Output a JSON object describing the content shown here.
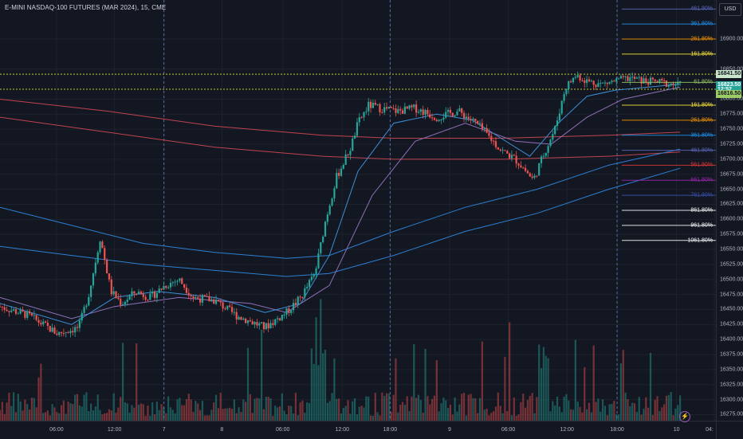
{
  "header": {
    "title": "E-MINI NASDAQ-100 FUTURES (MAR 2024), 15, CME"
  },
  "price_axis": {
    "currency": "USD",
    "ticks": [
      "16900.00",
      "16850.00",
      "16800.00",
      "16775.00",
      "16750.00",
      "16725.00",
      "16700.00",
      "16675.00",
      "16650.00",
      "16625.00",
      "16600.00",
      "16575.00",
      "16550.00",
      "16525.00",
      "16500.00",
      "16475.00",
      "16450.00",
      "16425.00",
      "16400.00",
      "16375.00",
      "16350.00",
      "16325.00",
      "16300.00",
      "16275.00"
    ],
    "tick_values": [
      16900,
      16850,
      16800,
      16775,
      16750,
      16725,
      16700,
      16675,
      16650,
      16625,
      16600,
      16575,
      16550,
      16525,
      16500,
      16475,
      16450,
      16425,
      16400,
      16375,
      16350,
      16325,
      16300,
      16275
    ],
    "tags": [
      {
        "text": "16841.50",
        "value": 16841.5,
        "color": "#ffeb3b",
        "fill": "#c8e6c9"
      },
      {
        "text": "16823.50",
        "value": 16823.5,
        "color": "#26a69a",
        "fill": "#26a69a"
      },
      {
        "text": "12:52",
        "value": 16815,
        "color": "#26a69a",
        "fill": "#26a69a"
      },
      {
        "text": "16816.50",
        "value": 16808.5,
        "color": "#9ccc65",
        "fill": "#9ccc65"
      }
    ]
  },
  "time_axis": {
    "labels": [
      "06:00",
      "12:00",
      "7",
      "8",
      "06:00",
      "12:00",
      "18:00",
      "9",
      "06:00",
      "12:00",
      "18:00",
      "10",
      "04:"
    ],
    "positions": [
      0.079,
      0.16,
      0.229,
      0.31,
      0.395,
      0.478,
      0.545,
      0.628,
      0.71,
      0.792,
      0.862,
      0.945,
      0.998
    ]
  },
  "fib_levels": [
    {
      "label": "461.80%",
      "value": 16950,
      "color": "#5c6bc0"
    },
    {
      "label": "361.80%",
      "value": 16925,
      "color": "#2196f3"
    },
    {
      "label": "261.80%",
      "value": 16900,
      "color": "#ff9800"
    },
    {
      "label": "161.80%",
      "value": 16875,
      "color": "#ffeb3b"
    },
    {
      "label": "61.80%",
      "value": 16828,
      "color": "#9ccc65"
    },
    {
      "label": "161.80%",
      "value": 16790,
      "color": "#ffeb3b"
    },
    {
      "label": "261.80%",
      "value": 16765,
      "color": "#ff9800"
    },
    {
      "label": "361.80%",
      "value": 16740,
      "color": "#2196f3"
    },
    {
      "label": "461.80%",
      "value": 16715,
      "color": "#5c6bc0"
    },
    {
      "label": "561.80%",
      "value": 16690,
      "color": "#e53935"
    },
    {
      "label": "661.80%",
      "value": 16665,
      "color": "#9c27b0"
    },
    {
      "label": "761.80%",
      "value": 16640,
      "color": "#3f51b5"
    },
    {
      "label": "861.80%",
      "value": 16615,
      "color": "#ffffff"
    },
    {
      "label": "961.80%",
      "value": 16590,
      "color": "#ffffff"
    },
    {
      "label": "1061.80%",
      "value": 16565,
      "color": "#ffffff"
    }
  ],
  "colors": {
    "up": "#26a69a",
    "down": "#ef5350",
    "grid": "#1e222d",
    "background": "#131722"
  },
  "chart_data": {
    "type": "line",
    "ylim": [
      16265,
      16965
    ],
    "close_path": [
      [
        0.0,
        16455
      ],
      [
        0.04,
        16440
      ],
      [
        0.08,
        16410
      ],
      [
        0.11,
        16420
      ],
      [
        0.125,
        16480
      ],
      [
        0.14,
        16570
      ],
      [
        0.155,
        16480
      ],
      [
        0.17,
        16460
      ],
      [
        0.19,
        16480
      ],
      [
        0.21,
        16470
      ],
      [
        0.23,
        16490
      ],
      [
        0.25,
        16500
      ],
      [
        0.27,
        16470
      ],
      [
        0.3,
        16465
      ],
      [
        0.33,
        16440
      ],
      [
        0.37,
        16420
      ],
      [
        0.4,
        16445
      ],
      [
        0.42,
        16470
      ],
      [
        0.44,
        16510
      ],
      [
        0.455,
        16600
      ],
      [
        0.47,
        16670
      ],
      [
        0.49,
        16720
      ],
      [
        0.5,
        16760
      ],
      [
        0.515,
        16790
      ],
      [
        0.53,
        16785
      ],
      [
        0.555,
        16780
      ],
      [
        0.58,
        16785
      ],
      [
        0.61,
        16770
      ],
      [
        0.64,
        16780
      ],
      [
        0.665,
        16760
      ],
      [
        0.685,
        16735
      ],
      [
        0.7,
        16715
      ],
      [
        0.72,
        16700
      ],
      [
        0.735,
        16680
      ],
      [
        0.745,
        16665
      ],
      [
        0.76,
        16710
      ],
      [
        0.775,
        16750
      ],
      [
        0.79,
        16820
      ],
      [
        0.805,
        16840
      ],
      [
        0.82,
        16830
      ],
      [
        0.84,
        16825
      ],
      [
        0.86,
        16830
      ],
      [
        0.88,
        16835
      ],
      [
        0.9,
        16830
      ],
      [
        0.92,
        16828
      ],
      [
        0.94,
        16825
      ],
      [
        0.95,
        16823.5
      ]
    ],
    "ema_fast": [
      [
        0.0,
        16460
      ],
      [
        0.1,
        16425
      ],
      [
        0.16,
        16470
      ],
      [
        0.22,
        16480
      ],
      [
        0.3,
        16470
      ],
      [
        0.37,
        16445
      ],
      [
        0.42,
        16460
      ],
      [
        0.46,
        16540
      ],
      [
        0.5,
        16680
      ],
      [
        0.55,
        16760
      ],
      [
        0.61,
        16775
      ],
      [
        0.66,
        16765
      ],
      [
        0.7,
        16735
      ],
      [
        0.74,
        16705
      ],
      [
        0.78,
        16760
      ],
      [
        0.82,
        16805
      ],
      [
        0.86,
        16815
      ],
      [
        0.95,
        16825
      ]
    ],
    "ema_slow": [
      [
        0.0,
        16470
      ],
      [
        0.1,
        16435
      ],
      [
        0.16,
        16455
      ],
      [
        0.25,
        16470
      ],
      [
        0.35,
        16460
      ],
      [
        0.4,
        16445
      ],
      [
        0.46,
        16490
      ],
      [
        0.52,
        16640
      ],
      [
        0.58,
        16730
      ],
      [
        0.65,
        16760
      ],
      [
        0.72,
        16730
      ],
      [
        0.77,
        16725
      ],
      [
        0.82,
        16770
      ],
      [
        0.87,
        16800
      ],
      [
        0.95,
        16820
      ]
    ],
    "ema_200a": [
      [
        0.0,
        16620
      ],
      [
        0.1,
        16590
      ],
      [
        0.2,
        16560
      ],
      [
        0.3,
        16545
      ],
      [
        0.4,
        16535
      ],
      [
        0.46,
        16540
      ],
      [
        0.55,
        16580
      ],
      [
        0.65,
        16620
      ],
      [
        0.75,
        16650
      ],
      [
        0.85,
        16690
      ],
      [
        0.95,
        16717
      ]
    ],
    "ema_200b": [
      [
        0.0,
        16555
      ],
      [
        0.1,
        16540
      ],
      [
        0.2,
        16525
      ],
      [
        0.3,
        16515
      ],
      [
        0.4,
        16505
      ],
      [
        0.46,
        16510
      ],
      [
        0.55,
        16540
      ],
      [
        0.65,
        16580
      ],
      [
        0.75,
        16610
      ],
      [
        0.85,
        16650
      ],
      [
        0.95,
        16685
      ]
    ],
    "red_band_a": [
      [
        0.0,
        16800
      ],
      [
        0.15,
        16780
      ],
      [
        0.3,
        16755
      ],
      [
        0.45,
        16740
      ],
      [
        0.55,
        16735
      ],
      [
        0.7,
        16735
      ],
      [
        0.85,
        16740
      ],
      [
        0.95,
        16745
      ]
    ],
    "red_band_b": [
      [
        0.0,
        16770
      ],
      [
        0.15,
        16745
      ],
      [
        0.3,
        16720
      ],
      [
        0.45,
        16705
      ],
      [
        0.55,
        16700
      ],
      [
        0.7,
        16700
      ],
      [
        0.85,
        16705
      ],
      [
        0.95,
        16712
      ]
    ],
    "vlines": [
      0.229,
      0.545,
      0.862
    ],
    "hlines": [
      16841.5,
      16816.5
    ]
  }
}
